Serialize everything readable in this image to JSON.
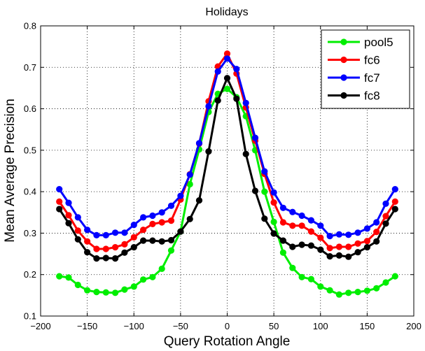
{
  "chart_data": {
    "type": "line",
    "title": "Holidays",
    "xlabel": "Query Rotation Angle",
    "ylabel": "Mean Average Precision",
    "xlim": [
      -200,
      200
    ],
    "ylim": [
      0.1,
      0.8
    ],
    "xticks": [
      -200,
      -150,
      -100,
      -50,
      0,
      50,
      100,
      150,
      200
    ],
    "yticks": [
      0.1,
      0.2,
      0.3,
      0.4,
      0.5,
      0.6,
      0.7,
      0.8
    ],
    "xtick_labels": [
      "−200",
      "−150",
      "−100",
      "−50",
      "0",
      "50",
      "100",
      "150",
      "200"
    ],
    "ytick_labels": [
      "0.1",
      "0.2",
      "0.3",
      "0.4",
      "0.5",
      "0.6",
      "0.7",
      "0.8"
    ],
    "grid": true,
    "legend_position": "top-right",
    "x": [
      -180,
      -170,
      -160,
      -150,
      -140,
      -130,
      -120,
      -110,
      -100,
      -90,
      -80,
      -70,
      -60,
      -50,
      -40,
      -30,
      -20,
      -10,
      0,
      10,
      20,
      30,
      40,
      50,
      60,
      70,
      80,
      90,
      100,
      110,
      120,
      130,
      140,
      150,
      160,
      170,
      180
    ],
    "series": [
      {
        "name": "pool5",
        "color": "#00ee00",
        "values": [
          0.196,
          0.193,
          0.175,
          0.162,
          0.158,
          0.157,
          0.156,
          0.164,
          0.171,
          0.188,
          0.194,
          0.214,
          0.258,
          0.304,
          0.418,
          0.502,
          0.592,
          0.636,
          0.648,
          0.628,
          0.582,
          0.5,
          0.4,
          0.327,
          0.253,
          0.216,
          0.194,
          0.189,
          0.171,
          0.162,
          0.152,
          0.156,
          0.158,
          0.161,
          0.167,
          0.181,
          0.196
        ]
      },
      {
        "name": "fc6",
        "color": "#ff0000",
        "values": [
          0.376,
          0.343,
          0.306,
          0.28,
          0.262,
          0.262,
          0.266,
          0.273,
          0.29,
          0.308,
          0.322,
          0.326,
          0.33,
          0.381,
          0.442,
          0.516,
          0.618,
          0.702,
          0.733,
          0.685,
          0.603,
          0.523,
          0.443,
          0.374,
          0.326,
          0.318,
          0.318,
          0.304,
          0.289,
          0.264,
          0.267,
          0.267,
          0.275,
          0.281,
          0.303,
          0.341,
          0.376
        ]
      },
      {
        "name": "fc7",
        "color": "#0000ff",
        "values": [
          0.406,
          0.373,
          0.338,
          0.308,
          0.295,
          0.295,
          0.301,
          0.301,
          0.32,
          0.338,
          0.342,
          0.35,
          0.366,
          0.39,
          0.441,
          0.517,
          0.606,
          0.69,
          0.721,
          0.696,
          0.614,
          0.53,
          0.449,
          0.398,
          0.361,
          0.351,
          0.342,
          0.331,
          0.318,
          0.293,
          0.297,
          0.296,
          0.301,
          0.311,
          0.326,
          0.371,
          0.406
        ]
      },
      {
        "name": "fc8",
        "color": "#000000",
        "values": [
          0.358,
          0.324,
          0.285,
          0.254,
          0.239,
          0.24,
          0.239,
          0.253,
          0.266,
          0.282,
          0.282,
          0.28,
          0.283,
          0.304,
          0.334,
          0.379,
          0.497,
          0.62,
          0.674,
          0.624,
          0.491,
          0.402,
          0.335,
          0.299,
          0.282,
          0.267,
          0.272,
          0.27,
          0.26,
          0.244,
          0.246,
          0.243,
          0.254,
          0.266,
          0.28,
          0.323,
          0.358
        ]
      }
    ]
  }
}
